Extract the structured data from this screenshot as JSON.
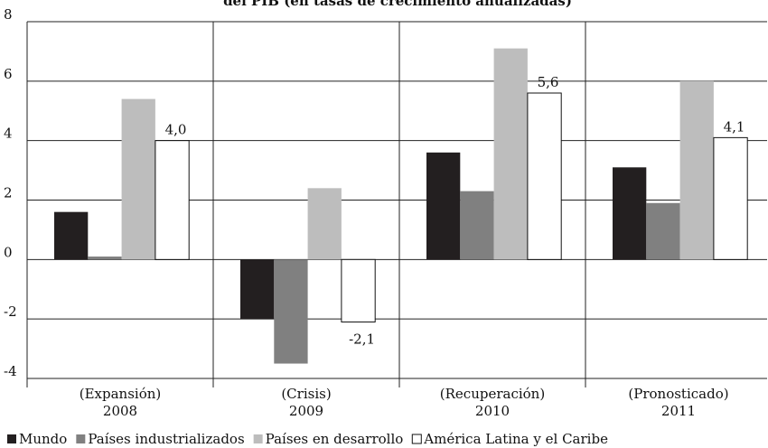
{
  "chart_data": {
    "type": "bar",
    "title": "del PIB (en tasas de crecimiento anualizadas)",
    "categories": [
      "2008",
      "2009",
      "2010",
      "2011"
    ],
    "category_notes": [
      "(Expansión)",
      "(Crisis)",
      "(Recuperación)",
      "(Pronosticado)"
    ],
    "series": [
      {
        "name": "Mundo",
        "color": "#231f20",
        "values": [
          1.6,
          -2.0,
          3.6,
          3.1
        ]
      },
      {
        "name": "Países industrializados",
        "color": "#808080",
        "values": [
          0.1,
          -3.5,
          2.3,
          1.9
        ]
      },
      {
        "name": "Países en desarrollo",
        "color": "#bdbdbd",
        "values": [
          5.4,
          2.4,
          7.1,
          6.0
        ]
      },
      {
        "name": "América Latina y el Caribe",
        "color": "#ffffff",
        "values": [
          4.0,
          -2.1,
          5.6,
          4.1
        ],
        "value_labels": [
          "4,0",
          "-2,1",
          "5,6",
          "4,1"
        ]
      }
    ],
    "ylim": [
      -4,
      8
    ],
    "yticks": [
      -4,
      -2,
      0,
      2,
      4,
      6,
      8
    ],
    "grid": true,
    "legend": "bottom"
  }
}
